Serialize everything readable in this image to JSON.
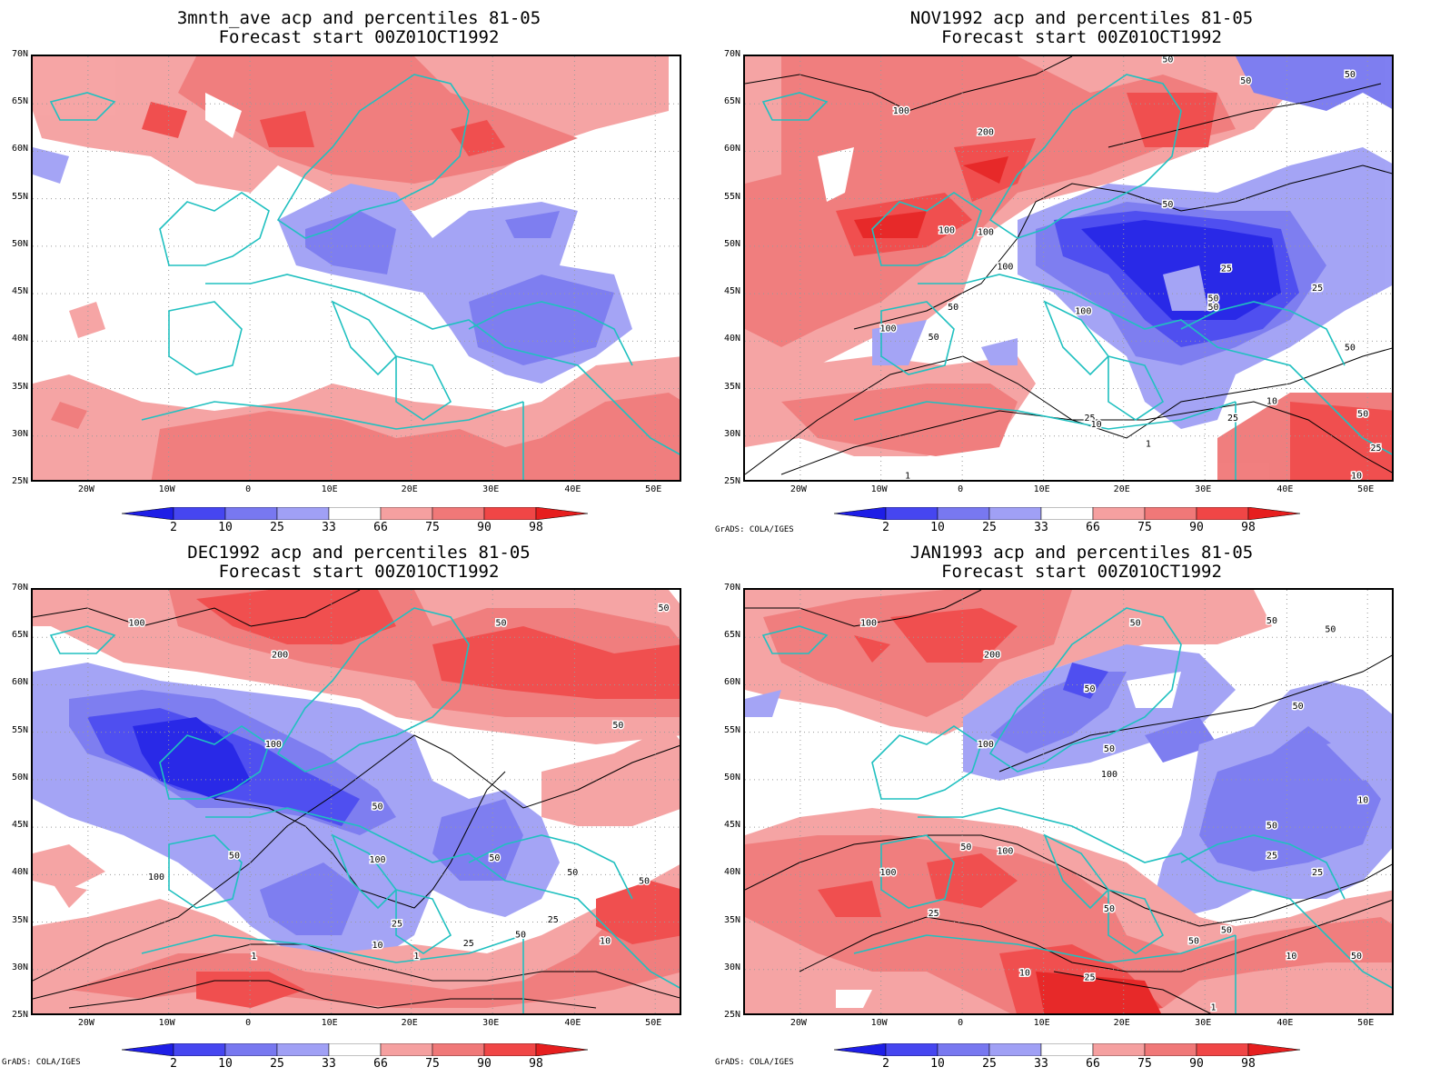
{
  "panels": [
    {
      "title_line1": "3mnth_ave acp and percentiles 81-05",
      "title_line2": "Forecast start 00Z01OCT1992",
      "credit": ""
    },
    {
      "title_line1": "NOV1992 acp and percentiles 81-05",
      "title_line2": "Forecast start 00Z01OCT1992",
      "credit": "GrADS: COLA/IGES"
    },
    {
      "title_line1": "DEC1992 acp and percentiles 81-05",
      "title_line2": "Forecast start 00Z01OCT1992",
      "credit": "GrADS: COLA/IGES"
    },
    {
      "title_line1": "JAN1993 acp and percentiles 81-05",
      "title_line2": "Forecast start 00Z01OCT1992",
      "credit": "GrADS: COLA/IGES"
    }
  ],
  "lat_labels": [
    "70N",
    "65N",
    "60N",
    "55N",
    "50N",
    "45N",
    "40N",
    "35N",
    "30N",
    "25N"
  ],
  "lon_labels": [
    "20W",
    "10W",
    "0",
    "10E",
    "20E",
    "30E",
    "40E",
    "50E"
  ],
  "colorbar": {
    "labels": [
      "2",
      "10",
      "25",
      "33",
      "66",
      "75",
      "90",
      "98"
    ],
    "colors": [
      "#1e1ee6",
      "#4646f0",
      "#7878f0",
      "#a0a0f5",
      "#ffffff",
      "#f5a0a0",
      "#f07878",
      "#f04646",
      "#e61e1e"
    ]
  },
  "contours": {
    "panel2": [
      "50",
      "50",
      "50",
      "100",
      "200",
      "100",
      "100",
      "100",
      "50",
      "25",
      "50",
      "50",
      "25",
      "50",
      "100",
      "100",
      "50",
      "50",
      "25",
      "25",
      "10",
      "1",
      "1",
      "10",
      "50",
      "25",
      "10"
    ],
    "panel3": [
      "100",
      "200",
      "50",
      "50",
      "100",
      "50",
      "50",
      "100",
      "50",
      "50",
      "100",
      "50",
      "50",
      "25",
      "10",
      "1",
      "1",
      "10",
      "25",
      "50",
      "25"
    ],
    "panel4": [
      "100",
      "200",
      "50",
      "50",
      "50",
      "100",
      "50",
      "50",
      "100",
      "50",
      "50",
      "25",
      "100",
      "50",
      "100",
      "50",
      "25",
      "10",
      "25",
      "10",
      "50",
      "50",
      "10",
      "25",
      "50",
      "1"
    ]
  }
}
